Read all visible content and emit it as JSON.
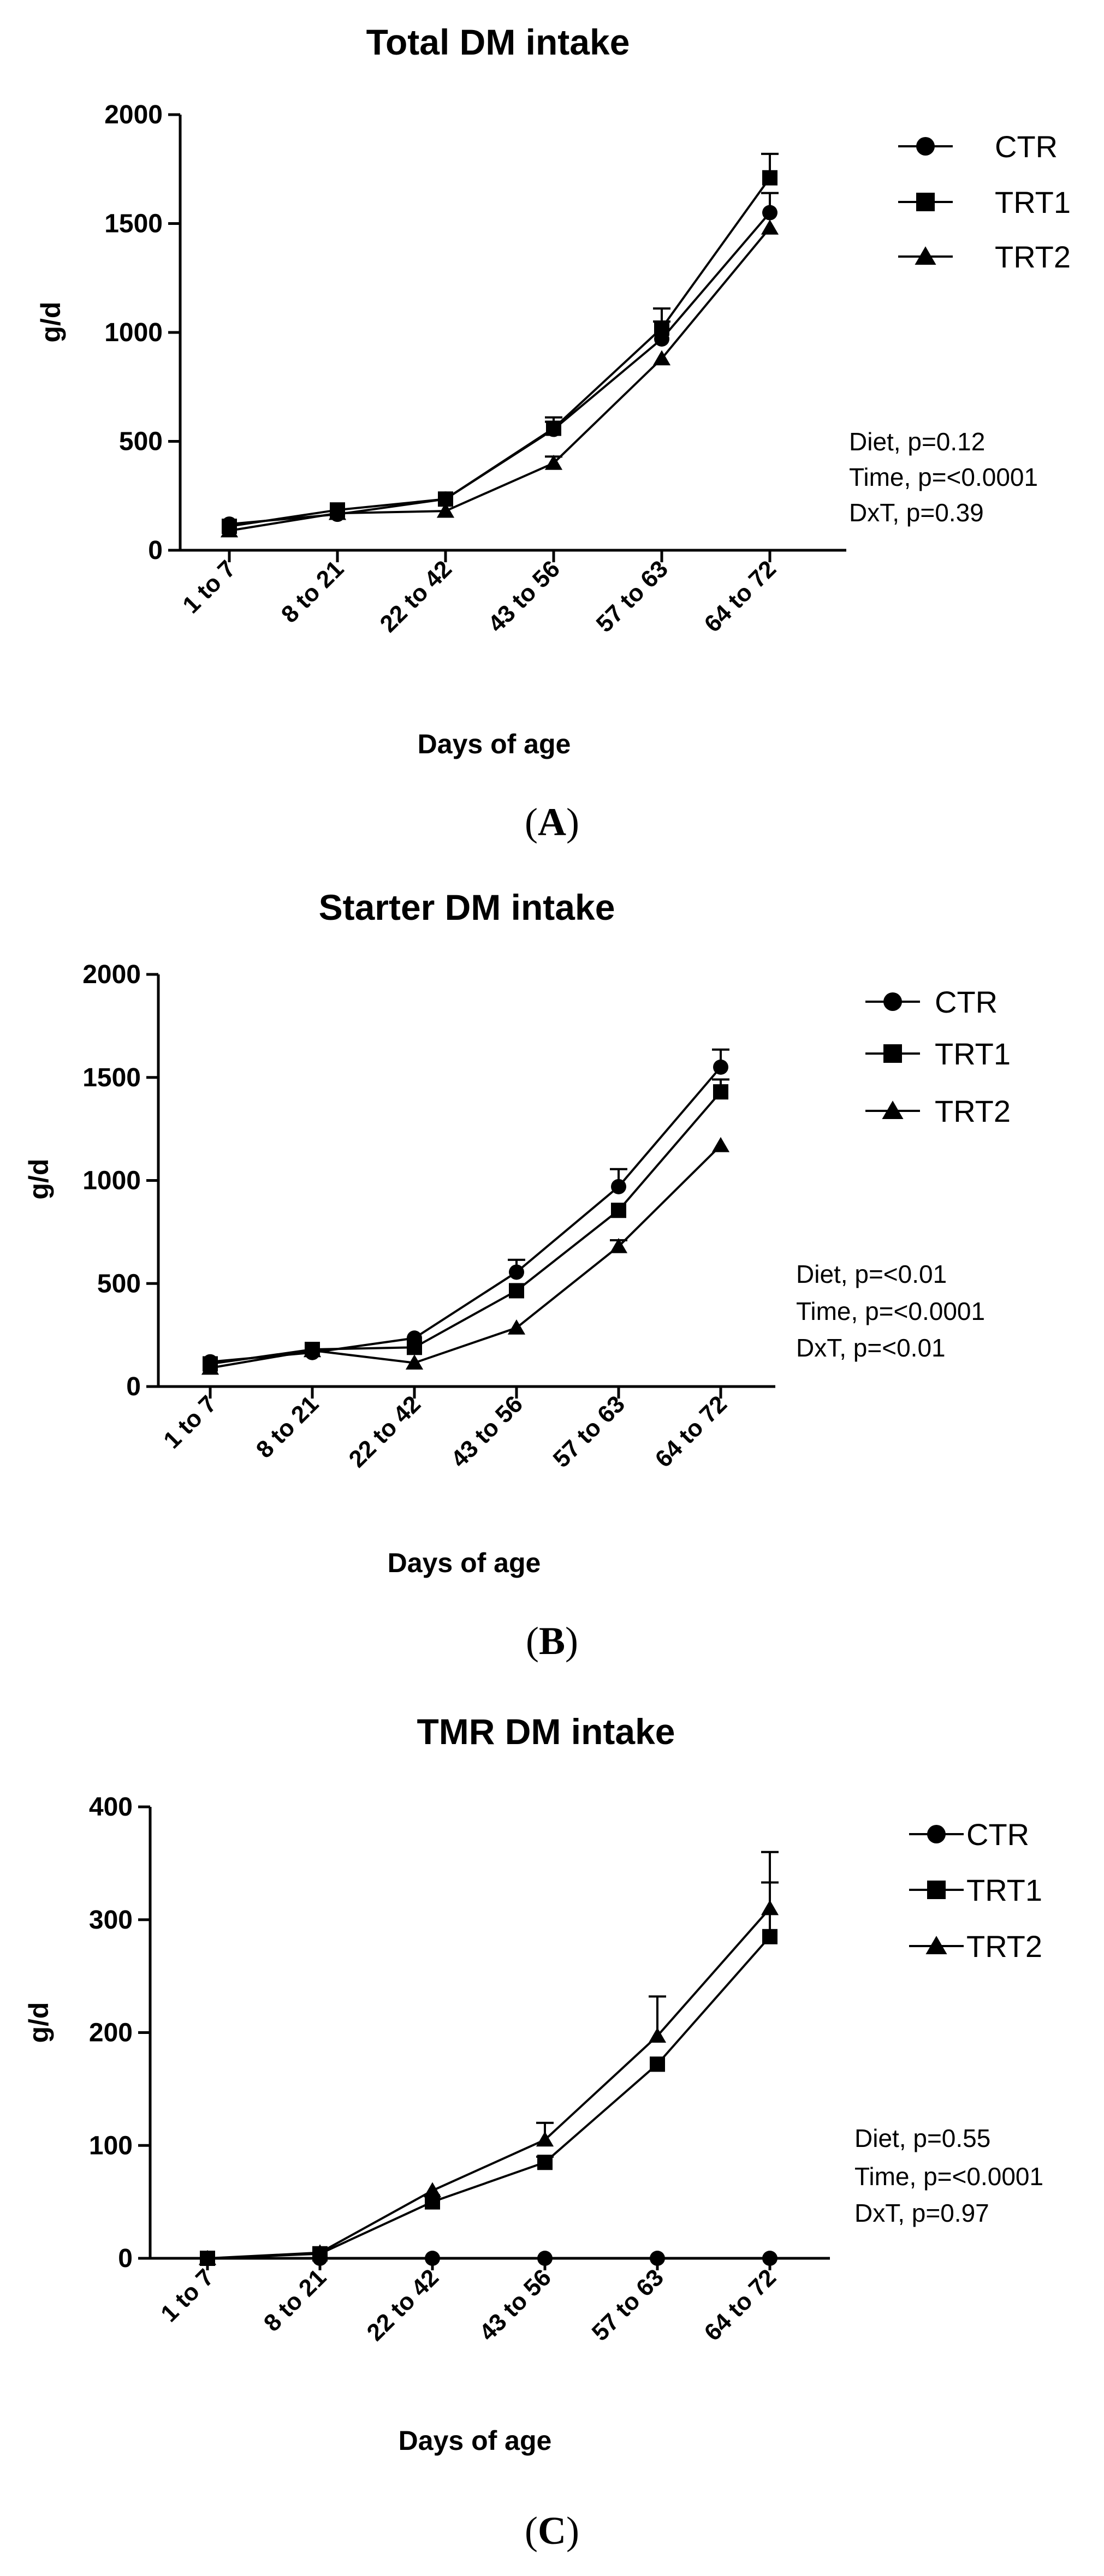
{
  "chart_data": [
    {
      "type": "line",
      "panel_label": "A",
      "title": "Total DM intake",
      "xlabel": "Days of age",
      "ylabel": "g/d",
      "categories": [
        "1 to 7",
        "8 to 21",
        "22 to 42",
        "43 to 56",
        "57 to 63",
        "64 to 72"
      ],
      "ylim": [
        0,
        2000
      ],
      "yticks": [
        "0",
        "500",
        "1000",
        "1500",
        "2000"
      ],
      "series": [
        {
          "name": "CTR",
          "marker": "circle",
          "values": [
            120,
            165,
            235,
            555,
            970,
            1550
          ],
          "errors": [
            0,
            0,
            0,
            55,
            80,
            90
          ]
        },
        {
          "name": "TRT1",
          "marker": "square",
          "values": [
            110,
            185,
            235,
            560,
            1020,
            1710
          ],
          "errors": [
            0,
            0,
            0,
            30,
            90,
            110
          ]
        },
        {
          "name": "TRT2",
          "marker": "triangle",
          "values": [
            90,
            170,
            180,
            400,
            880,
            1480
          ],
          "errors": [
            0,
            0,
            0,
            30,
            0,
            0
          ]
        }
      ],
      "legend_position": "right",
      "stats": [
        "Diet, p=0.12",
        "Time,  p=<0.0001",
        "DxT, p=0.39"
      ]
    },
    {
      "type": "line",
      "panel_label": "B",
      "title": "Starter DM intake",
      "xlabel": "Days of age",
      "ylabel": "g/d",
      "categories": [
        "1 to 7",
        "8 to 21",
        "22 to 42",
        "43 to 56",
        "57 to 63",
        "64 to 72"
      ],
      "ylim": [
        0,
        2000
      ],
      "yticks": [
        "0",
        "500",
        "1000",
        "1500",
        "2000"
      ],
      "series": [
        {
          "name": "CTR",
          "marker": "circle",
          "values": [
            120,
            165,
            235,
            555,
            970,
            1550
          ],
          "errors": [
            0,
            0,
            0,
            60,
            85,
            85
          ]
        },
        {
          "name": "TRT1",
          "marker": "square",
          "values": [
            110,
            180,
            190,
            465,
            855,
            1430
          ],
          "errors": [
            0,
            0,
            0,
            0,
            0,
            60
          ]
        },
        {
          "name": "TRT2",
          "marker": "triangle",
          "values": [
            90,
            175,
            115,
            285,
            680,
            1170
          ],
          "errors": [
            0,
            0,
            0,
            0,
            30,
            0
          ]
        }
      ],
      "legend_position": "right",
      "stats": [
        "Diet, p=<0.01",
        "Time, p=<0.0001",
        "DxT, p=<0.01"
      ]
    },
    {
      "type": "line",
      "panel_label": "C",
      "title": "TMR DM intake",
      "xlabel": "Days of age",
      "ylabel": "g/d",
      "categories": [
        "1 to 7",
        "8 to 21",
        "22 to 42",
        "43 to 56",
        "57 to 63",
        "64 to 72"
      ],
      "ylim": [
        0,
        400
      ],
      "yticks": [
        "0",
        "100",
        "200",
        "300",
        "400"
      ],
      "series": [
        {
          "name": "CTR",
          "marker": "circle",
          "values": [
            0,
            0,
            0,
            0,
            0,
            0
          ],
          "errors": [
            0,
            0,
            0,
            0,
            0,
            0
          ]
        },
        {
          "name": "TRT1",
          "marker": "square",
          "values": [
            0,
            4,
            50,
            85,
            172,
            285
          ],
          "errors": [
            0,
            0,
            0,
            5,
            0,
            48
          ]
        },
        {
          "name": "TRT2",
          "marker": "triangle",
          "values": [
            0,
            5,
            60,
            105,
            197,
            310
          ],
          "errors": [
            0,
            0,
            0,
            15,
            35,
            50
          ]
        }
      ],
      "legend_position": "right",
      "stats": [
        "Diet, p=0.55",
        "Time, p=<0.0001",
        "DxT, p=0.97"
      ]
    }
  ]
}
